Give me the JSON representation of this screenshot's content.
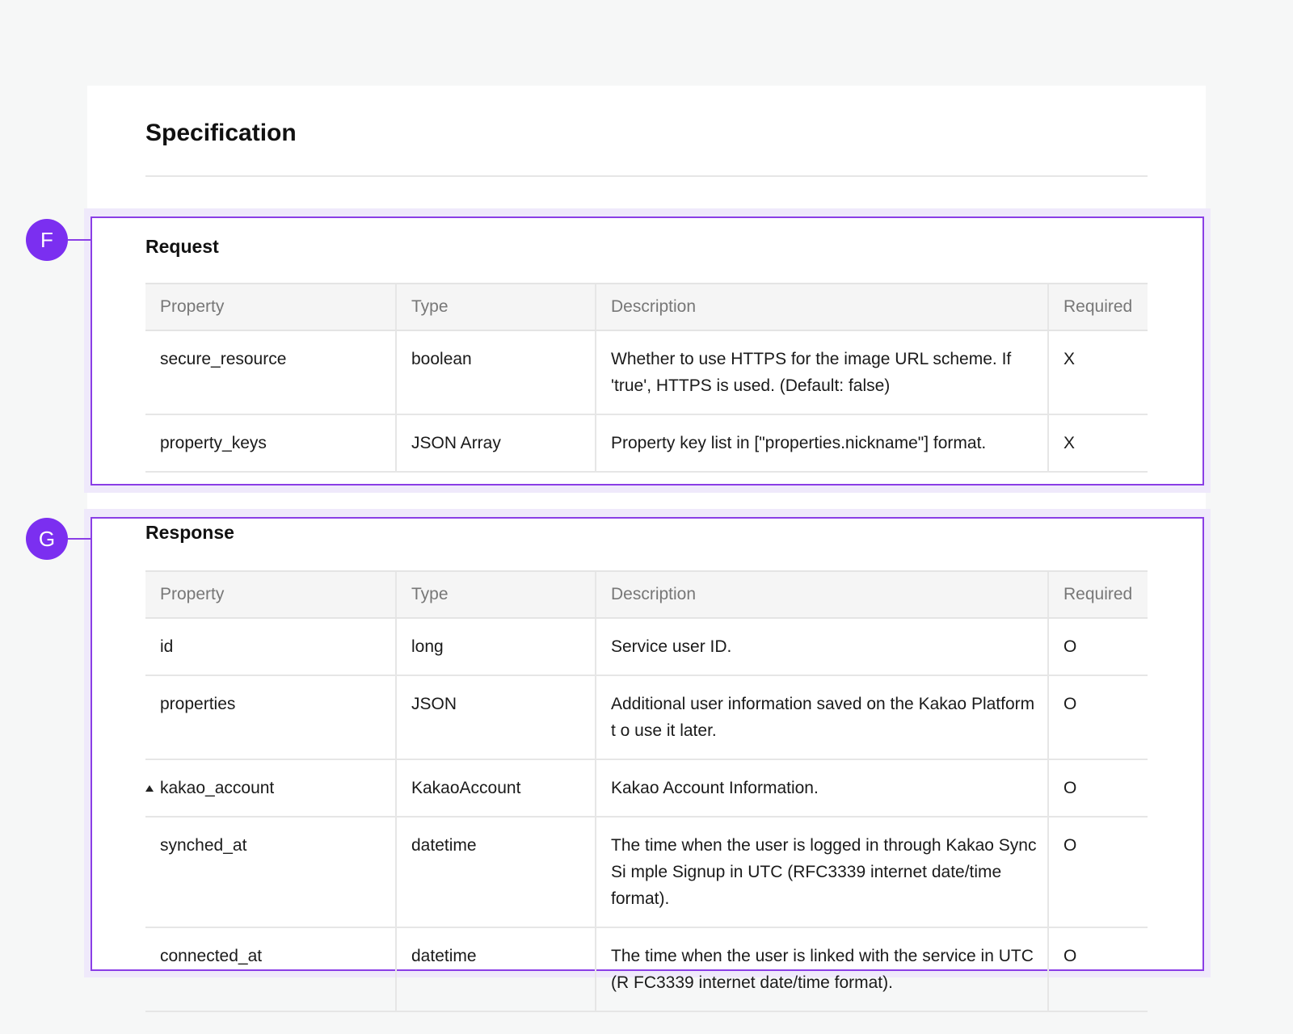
{
  "page": {
    "title": "Specification"
  },
  "request": {
    "marker": "F",
    "heading": "Request",
    "columns": [
      "Property",
      "Type",
      "Description",
      "Required"
    ],
    "rows": [
      {
        "property": "secure_resource",
        "type": "boolean",
        "description": "Whether to use HTTPS for the image URL scheme. If 'true', HTTPS is used. (Default: false)",
        "required": "X"
      },
      {
        "property": "property_keys",
        "type": "JSON Array",
        "description": "Property key list in [\"properties.nickname\"] format.",
        "required": "X"
      }
    ]
  },
  "response": {
    "marker": "G",
    "heading": "Response",
    "columns": [
      "Property",
      "Type",
      "Description",
      "Required"
    ],
    "rows": [
      {
        "property": "id",
        "type": "long",
        "description": "Service user ID.",
        "required": "O"
      },
      {
        "property": "properties",
        "type": "JSON",
        "description": "Additional user information saved on the Kakao Platform t o use it later.",
        "required": "O"
      },
      {
        "property": "kakao_account",
        "type": "KakaoAccount",
        "description": "Kakao Account Information.",
        "required": "O",
        "icon": "triangle-up-icon"
      },
      {
        "property": "synched_at",
        "type": "datetime",
        "description": "The time when the user is logged in through Kakao Sync Si mple Signup in UTC (RFC3339 internet date/time format).",
        "required": "O"
      },
      {
        "property": "connected_at",
        "type": "datetime",
        "description": "The time when the user is linked with the service in UTC (R FC3339 internet date/time format).",
        "required": "O"
      }
    ]
  },
  "colors": {
    "accent": "#7b2ff0",
    "type_text": "#e0251b",
    "background": "#f6f7f7"
  }
}
